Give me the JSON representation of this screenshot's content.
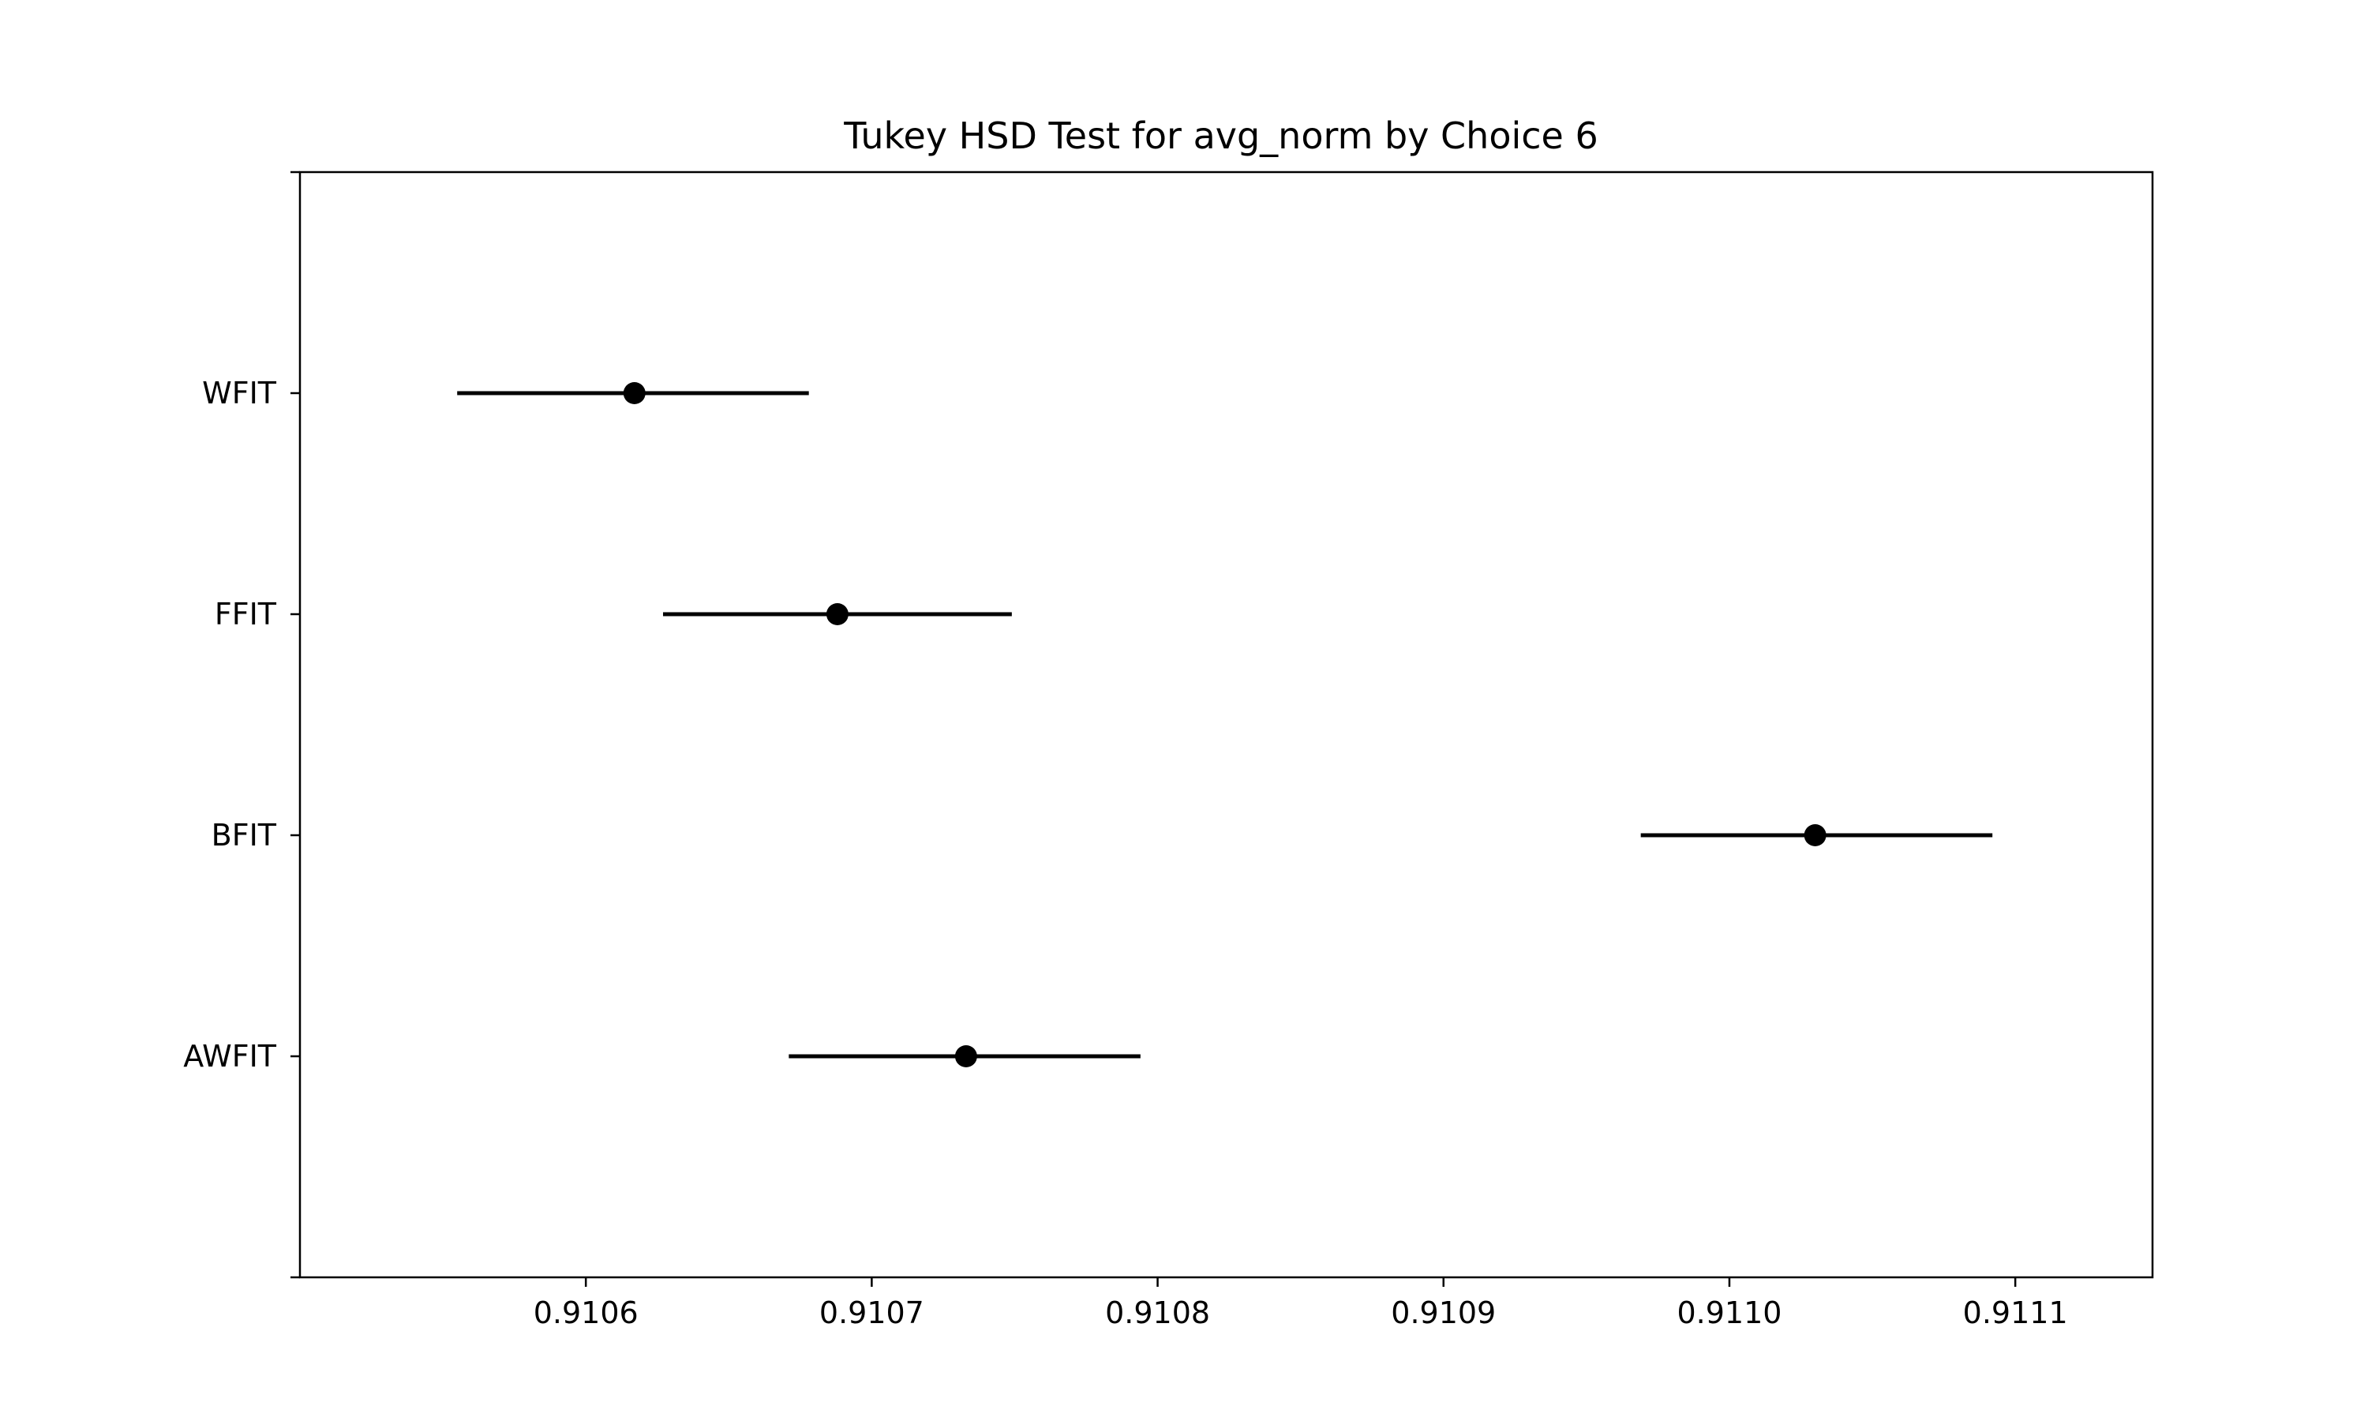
{
  "chart_data": {
    "type": "errorbar",
    "title": "Tukey HSD Test for avg_norm by Choice 6",
    "xlabel": "",
    "ylabel": "",
    "xlim": [
      0.9105,
      0.911148
    ],
    "x_ticks": [
      0.9106,
      0.9107,
      0.9108,
      0.9109,
      0.911,
      0.9111
    ],
    "x_tick_labels": [
      "0.9106",
      "0.9107",
      "0.9108",
      "0.9109",
      "0.9110",
      "0.9111"
    ],
    "grid": false,
    "legend": "none",
    "groups": [
      {
        "label": "WFIT",
        "mean": 0.910617,
        "lower": 0.910555,
        "upper": 0.910678
      },
      {
        "label": "FFIT",
        "mean": 0.910688,
        "lower": 0.910627,
        "upper": 0.910749
      },
      {
        "label": "BFIT",
        "mean": 0.91103,
        "lower": 0.910969,
        "upper": 0.911092
      },
      {
        "label": "AWFIT",
        "mean": 0.910733,
        "lower": 0.910671,
        "upper": 0.910794
      }
    ],
    "colors": {
      "line": "#000000",
      "marker": "#000000"
    }
  }
}
